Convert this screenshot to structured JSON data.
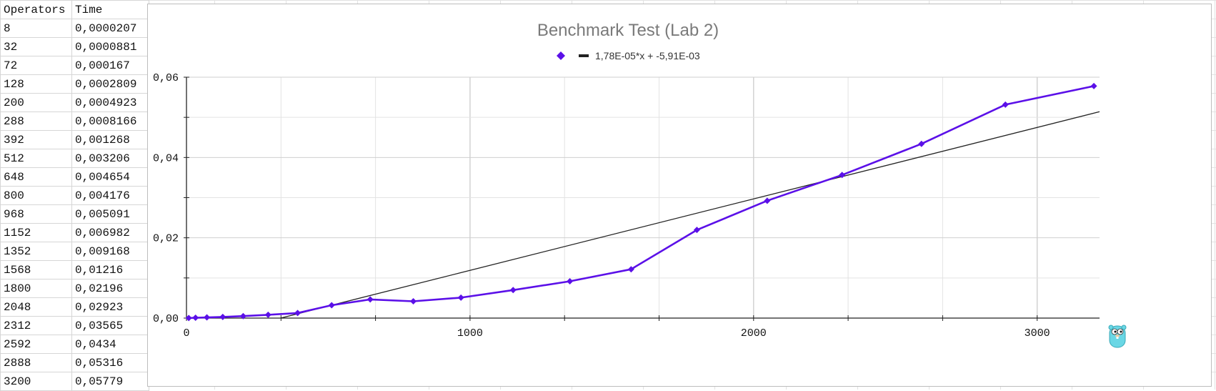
{
  "table": {
    "headers": [
      "Operators",
      "Time"
    ],
    "rows": [
      [
        "8",
        "0,0000207"
      ],
      [
        "32",
        "0,0000881"
      ],
      [
        "72",
        "0,000167"
      ],
      [
        "128",
        "0,0002809"
      ],
      [
        "200",
        "0,0004923"
      ],
      [
        "288",
        "0,0008166"
      ],
      [
        "392",
        "0,001268"
      ],
      [
        "512",
        "0,003206"
      ],
      [
        "648",
        "0,004654"
      ],
      [
        "800",
        "0,004176"
      ],
      [
        "968",
        "0,005091"
      ],
      [
        "1152",
        "0,006982"
      ],
      [
        "1352",
        "0,009168"
      ],
      [
        "1568",
        "0,01216"
      ],
      [
        "1800",
        "0,02196"
      ],
      [
        "2048",
        "0,02923"
      ],
      [
        "2312",
        "0,03565"
      ],
      [
        "2592",
        "0,0434"
      ],
      [
        "2888",
        "0,05316"
      ],
      [
        "3200",
        "0,05779"
      ]
    ]
  },
  "chart_data": {
    "type": "scatter",
    "title": "Benchmark Test (Lab 2)",
    "legend": {
      "placement": "top",
      "trendline_label": "1,78E-05*x + -5,91E-03"
    },
    "x": [
      8,
      32,
      72,
      128,
      200,
      288,
      392,
      512,
      648,
      800,
      968,
      1152,
      1352,
      1568,
      1800,
      2048,
      2312,
      2592,
      2888,
      3200
    ],
    "y": [
      2.07e-05,
      8.81e-05,
      0.000167,
      0.0002809,
      0.0004923,
      0.0008166,
      0.001268,
      0.003206,
      0.004654,
      0.004176,
      0.005091,
      0.006982,
      0.009168,
      0.01216,
      0.02196,
      0.02923,
      0.03565,
      0.0434,
      0.05316,
      0.05779
    ],
    "trendline": {
      "slope": 1.78e-05,
      "intercept": -0.00591
    },
    "xlim": [
      0,
      3220
    ],
    "ylim": [
      0,
      0.06
    ],
    "x_ticks": [
      0,
      1000,
      2000,
      3000
    ],
    "y_ticks": [
      0,
      0.02,
      0.04,
      0.06
    ],
    "x_tick_labels": [
      "0",
      "1000",
      "2000",
      "3000"
    ],
    "y_tick_labels": [
      "0,00",
      "0,02",
      "0,04",
      "0,06"
    ],
    "grid": true,
    "colors": {
      "series": "#5b10e8",
      "trendline": "#222222",
      "grid": "#d9d9d9",
      "axis": "#222222"
    }
  },
  "mascot": {
    "icon": "gopher-mascot-icon",
    "color": "#6ad7e5"
  }
}
